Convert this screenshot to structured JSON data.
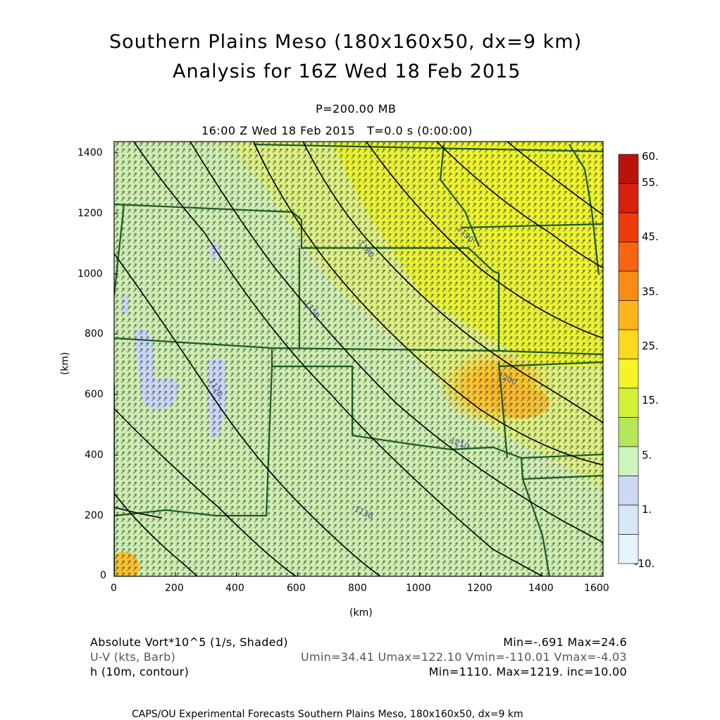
{
  "title": {
    "line1": "Southern Plains Meso (180x160x50, dx=9 km)",
    "line2": "Analysis for 16Z Wed 18 Feb 2015"
  },
  "subtitle": {
    "level": "P=200.00 MB",
    "time": "16:00 Z Wed 18 Feb 2015   T=0.0 s (0:00:00)"
  },
  "axes": {
    "x_ticks": [
      "0",
      "200",
      "400",
      "600",
      "800",
      "1000",
      "1200",
      "1400",
      "1600"
    ],
    "y_ticks": [
      "0",
      "200",
      "400",
      "600",
      "800",
      "1000",
      "1200",
      "1400"
    ],
    "x_label": "(km)",
    "y_label": "(km)"
  },
  "colorbar": {
    "labels": [
      "60.",
      "55.",
      "45.",
      "35.",
      "25.",
      "15.",
      "5.",
      "1.",
      "-10."
    ],
    "colors": [
      "#b8140c",
      "#d8200c",
      "#ec3a0c",
      "#f86410",
      "#f88c14",
      "#fcb41c",
      "#fcd820",
      "#f4f428",
      "#d4f038",
      "#b4e858",
      "#cdf4bc",
      "#cdd8f4",
      "#d4e8f8",
      "#e4f4fc"
    ]
  },
  "contours": {
    "labels": [
      "1120",
      "1150",
      "1180",
      "1190",
      "1200",
      "1210",
      "1130"
    ]
  },
  "info": {
    "row1_left": "Absolute Vort*10^5 (1/s, Shaded)",
    "row1_right": "Min=-.691 Max=24.6",
    "row2_left": "U-V (kts, Barb)",
    "row2_right": "Umin=34.41 Umax=122.10 Vmin=-110.01 Vmax=-4.03",
    "row3_left": "h (10m, contour)",
    "row3_right": "Min=1110. Max=1219. inc=10.00"
  },
  "footer": "CAPS/OU Experimental Forecasts  Southern Plains Meso, 180x160x50, dx=9 km",
  "colors": {
    "state_lines": "#1e5a28",
    "contour_lines": "#000000",
    "barbs": "#3c3c3c",
    "axis_text": "#000000",
    "label_text": "#3c50a0"
  }
}
